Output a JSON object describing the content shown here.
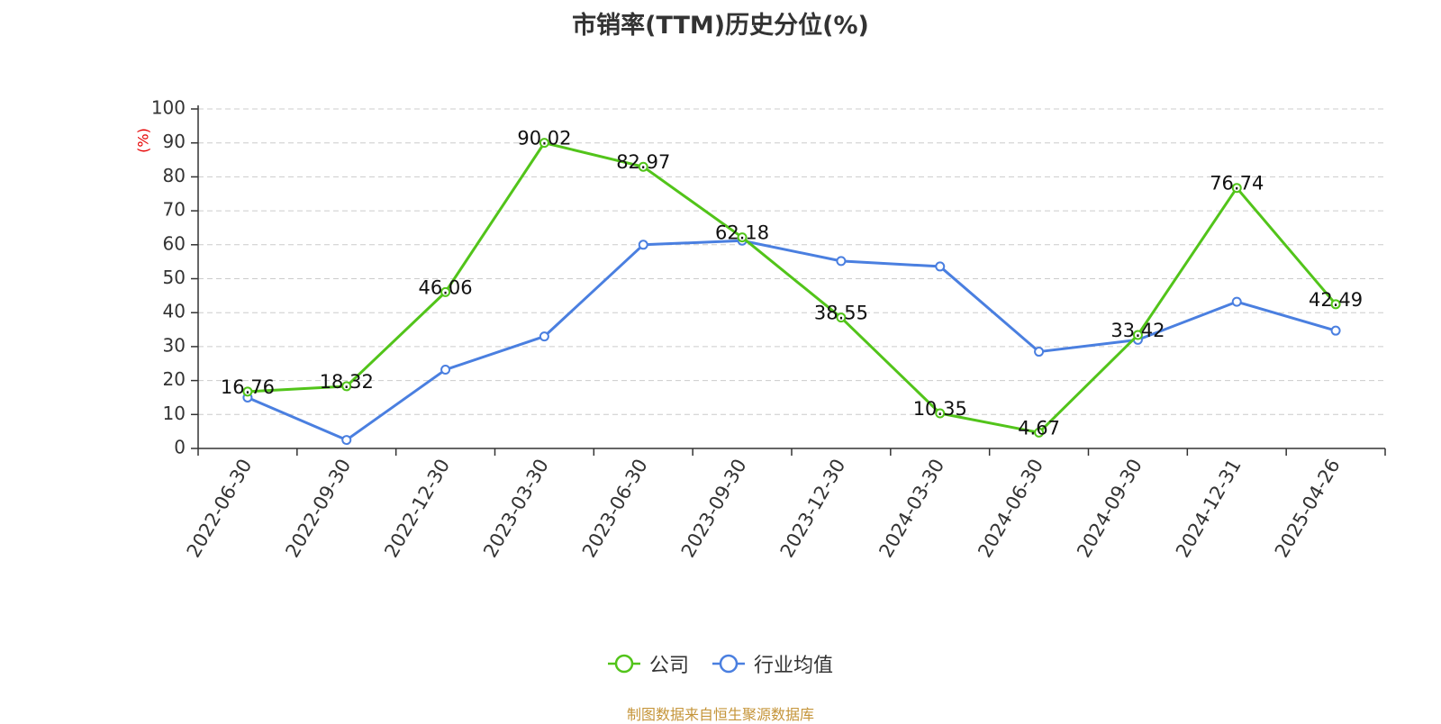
{
  "colors": {
    "company": "#52c41a",
    "industry": "#4a7fe0",
    "ylabel": "#e60000",
    "source": "#c5953a"
  },
  "chart_data": {
    "type": "line",
    "title": "市销率(TTM)历史分位(%)",
    "ylabel": "(%)",
    "xlabel": "",
    "ylim": [
      0,
      100
    ],
    "yticks": [
      0,
      10,
      20,
      30,
      40,
      50,
      60,
      70,
      80,
      90,
      100
    ],
    "grid": true,
    "legend_position": "bottom-center",
    "categories": [
      "2022-06-30",
      "2022-09-30",
      "2022-12-30",
      "2023-03-30",
      "2023-06-30",
      "2023-09-30",
      "2023-12-30",
      "2024-03-30",
      "2024-06-30",
      "2024-09-30",
      "2024-12-31",
      "2025-04-26"
    ],
    "series": [
      {
        "name": "公司",
        "color": "#52c41a",
        "show_labels": true,
        "values": [
          16.76,
          18.32,
          46.06,
          90.02,
          82.97,
          62.18,
          38.55,
          10.35,
          4.67,
          33.42,
          76.74,
          42.49
        ]
      },
      {
        "name": "行业均值",
        "color": "#4a7fe0",
        "show_labels": false,
        "values": [
          15.0,
          2.5,
          23.2,
          33.0,
          60.0,
          61.2,
          55.2,
          53.6,
          28.5,
          32.0,
          43.2,
          34.7
        ]
      }
    ]
  },
  "source_note": "制图数据来自恒生聚源数据库"
}
